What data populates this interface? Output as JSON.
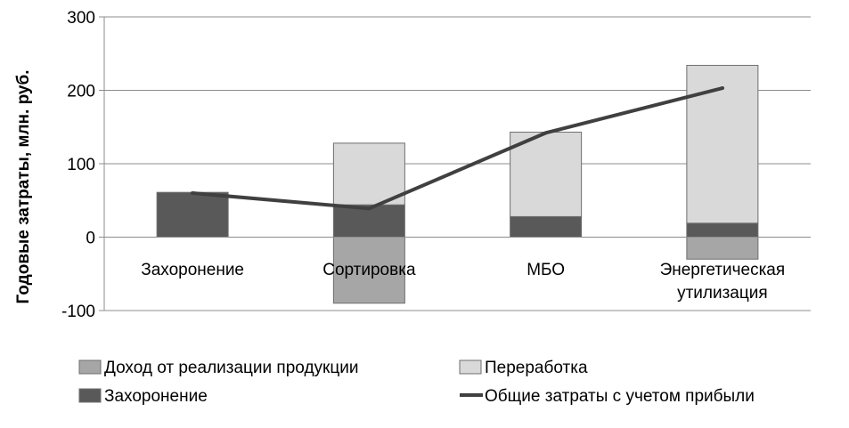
{
  "chart_data": {
    "type": "bar",
    "stacked": true,
    "title": "",
    "xlabel": "",
    "ylabel": "Годовые затраты, млн. руб.",
    "ylim": [
      -100,
      300
    ],
    "yticks": [
      "300",
      "200",
      "100",
      "0",
      "-100"
    ],
    "grid": true,
    "legend_position": "bottom",
    "categories": [
      "Захоронение",
      "Сортировка",
      "МБО",
      "Энергетическая утилизация"
    ],
    "category_lines": [
      [
        "Захоронение"
      ],
      [
        "Сортировка"
      ],
      [
        "МБО"
      ],
      [
        "Энергетическая",
        "утилизация"
      ]
    ],
    "series": [
      {
        "name": "Доход от реализации продукции",
        "kind": "bar",
        "color": "#a6a6a6",
        "values": [
          0,
          -90,
          0,
          -30
        ]
      },
      {
        "name": "Захоронение",
        "kind": "bar",
        "color": "#595959",
        "values": [
          61,
          44,
          28,
          19
        ]
      },
      {
        "name": "Переработка",
        "kind": "bar",
        "color": "#d9d9d9",
        "values": [
          0,
          84,
          115,
          215
        ]
      },
      {
        "name": "Общие затраты с учетом прибыли",
        "kind": "line",
        "color": "#404040",
        "values": [
          60,
          39,
          142,
          203
        ]
      }
    ]
  }
}
